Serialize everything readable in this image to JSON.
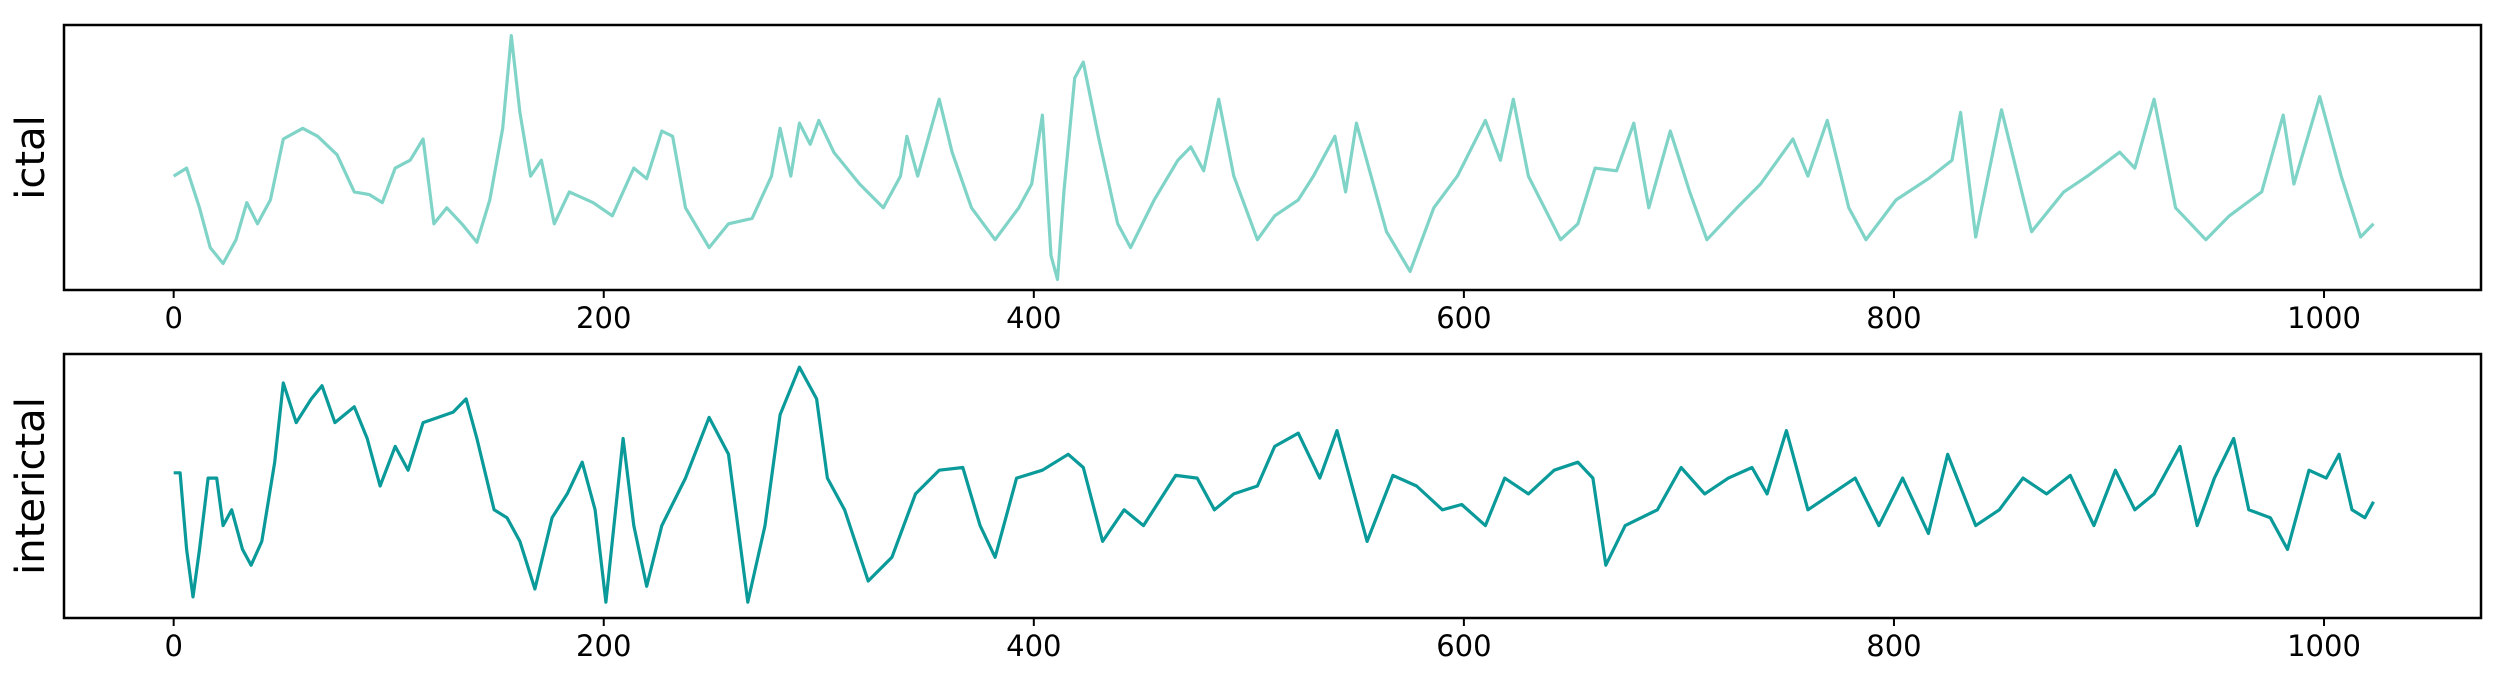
{
  "chart_data": [
    {
      "type": "line",
      "ylabel": "ictal",
      "color": "#7fd4c7",
      "xlim": [
        -51,
        1073
      ],
      "ylim": [
        0,
        100
      ],
      "xticks": [
        0,
        200,
        400,
        600,
        800,
        1000
      ],
      "x": [
        0,
        6,
        12,
        17,
        23,
        29,
        34,
        39,
        45,
        51,
        60,
        67,
        76,
        84,
        91,
        97,
        103,
        110,
        116,
        121,
        127,
        134,
        141,
        147,
        153,
        157,
        161,
        166,
        171,
        177,
        184,
        195,
        204,
        214,
        220,
        227,
        232,
        238,
        249,
        258,
        269,
        278,
        282,
        287,
        291,
        296,
        300,
        307,
        319,
        330,
        338,
        341,
        346,
        356,
        362,
        371,
        382,
        393,
        399,
        404,
        408,
        411,
        414,
        419,
        423,
        430,
        439,
        445,
        456,
        467,
        473,
        479,
        486,
        493,
        504,
        512,
        523,
        530,
        540,
        545,
        550,
        564,
        575,
        586,
        597,
        610,
        617,
        623,
        630,
        645,
        653,
        661,
        671,
        679,
        686,
        696,
        705,
        713,
        727,
        738,
        753,
        760,
        769,
        779,
        787,
        801,
        816,
        827,
        831,
        838,
        850,
        864,
        879,
        890,
        905,
        912,
        921,
        931,
        945,
        956,
        971,
        981,
        986,
        998,
        1008,
        1017,
        1023
      ],
      "values": [
        43,
        46,
        31,
        16,
        10,
        19,
        33,
        25,
        34,
        57,
        61,
        58,
        51,
        37,
        36,
        33,
        46,
        49,
        57,
        25,
        31,
        25,
        18,
        34,
        61,
        96,
        67,
        43,
        49,
        25,
        37,
        33,
        28,
        46,
        42,
        60,
        58,
        31,
        16,
        25,
        27,
        43,
        61,
        43,
        63,
        55,
        64,
        52,
        40,
        31,
        43,
        58,
        43,
        72,
        52,
        31,
        19,
        31,
        40,
        66,
        13,
        4,
        37,
        80,
        86,
        58,
        25,
        16,
        34,
        49,
        54,
        45,
        72,
        43,
        19,
        28,
        34,
        43,
        58,
        37,
        63,
        22,
        7,
        31,
        43,
        64,
        49,
        72,
        43,
        19,
        25,
        46,
        45,
        63,
        31,
        60,
        37,
        19,
        31,
        40,
        57,
        43,
        64,
        31,
        19,
        34,
        42,
        49,
        67,
        20,
        68,
        22,
        37,
        43,
        52,
        46,
        72,
        31,
        19,
        28,
        37,
        66,
        40,
        73,
        43,
        20,
        25
      ]
    },
    {
      "type": "line",
      "ylabel": "interictal",
      "color": "#0a9a9a",
      "xlim": [
        -51,
        1073
      ],
      "ylim": [
        0,
        100
      ],
      "xticks": [
        0,
        200,
        400,
        600,
        800,
        1000
      ],
      "x": [
        0,
        3,
        6,
        9,
        12,
        16,
        20,
        23,
        27,
        32,
        36,
        41,
        47,
        51,
        57,
        64,
        69,
        75,
        84,
        90,
        96,
        103,
        109,
        116,
        123,
        130,
        136,
        141,
        149,
        155,
        161,
        168,
        176,
        183,
        190,
        196,
        201,
        209,
        214,
        220,
        227,
        238,
        249,
        258,
        267,
        275,
        282,
        291,
        299,
        304,
        312,
        323,
        334,
        345,
        356,
        367,
        375,
        382,
        392,
        404,
        416,
        423,
        432,
        442,
        451,
        466,
        476,
        484,
        493,
        504,
        512,
        523,
        533,
        541,
        555,
        567,
        578,
        590,
        599,
        610,
        619,
        630,
        642,
        653,
        660,
        666,
        675,
        690,
        701,
        712,
        723,
        734,
        741,
        750,
        760,
        771,
        782,
        793,
        804,
        816,
        825,
        838,
        849,
        860,
        871,
        882,
        893,
        903,
        912,
        921,
        933,
        941,
        949,
        958,
        965,
        975,
        983,
        993,
        1001,
        1007,
        1013,
        1019,
        1023
      ],
      "values": [
        55,
        55,
        26,
        8,
        26,
        53,
        53,
        35,
        41,
        26,
        20,
        29,
        59,
        89,
        74,
        83,
        88,
        74,
        80,
        68,
        50,
        65,
        56,
        74,
        76,
        78,
        83,
        68,
        41,
        38,
        29,
        11,
        38,
        47,
        59,
        41,
        6,
        68,
        35,
        12,
        35,
        53,
        76,
        62,
        6,
        35,
        77,
        95,
        83,
        53,
        41,
        14,
        23,
        47,
        56,
        57,
        35,
        23,
        53,
        56,
        62,
        57,
        29,
        41,
        35,
        54,
        53,
        41,
        47,
        50,
        65,
        70,
        53,
        71,
        29,
        54,
        50,
        41,
        43,
        35,
        53,
        47,
        56,
        59,
        53,
        20,
        35,
        41,
        57,
        47,
        53,
        57,
        47,
        71,
        41,
        47,
        53,
        35,
        53,
        32,
        62,
        35,
        41,
        53,
        47,
        54,
        35,
        56,
        41,
        47,
        65,
        35,
        53,
        68,
        41,
        38,
        26,
        56,
        53,
        62,
        41,
        38,
        44
      ]
    }
  ]
}
